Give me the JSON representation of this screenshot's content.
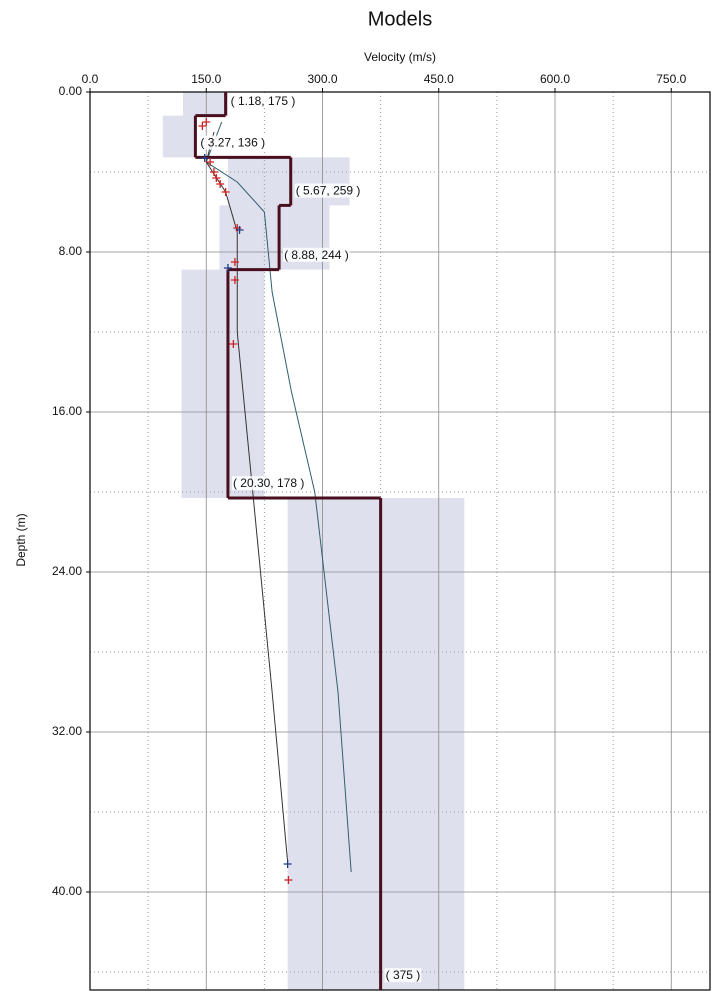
{
  "chart_data": {
    "type": "step-profile",
    "title": "Models",
    "x_label": "Velocity (m/s)",
    "y_label": "Depth (m)",
    "xlim": [
      0,
      800
    ],
    "ylim": [
      0,
      44.9
    ],
    "y_inverted": true,
    "xticks": [
      {
        "value": 0,
        "label": "0.0"
      },
      {
        "value": 150,
        "label": "150.0"
      },
      {
        "value": 300,
        "label": "300.0"
      },
      {
        "value": 450,
        "label": "450.0"
      },
      {
        "value": 600,
        "label": "600.0"
      },
      {
        "value": 750,
        "label": "750.0"
      }
    ],
    "yticks": [
      {
        "value": 0,
        "label": "0.00"
      },
      {
        "value": 8,
        "label": "8.00"
      },
      {
        "value": 16,
        "label": "16.00"
      },
      {
        "value": 24,
        "label": "24.00"
      },
      {
        "value": 32,
        "label": "32.00"
      },
      {
        "value": 40,
        "label": "40.00"
      }
    ],
    "xminorticks": [
      75,
      225,
      375,
      525,
      675
    ],
    "yminorticks": [
      4,
      12,
      20,
      28,
      36,
      44
    ],
    "grid": true,
    "layers": {
      "color": "#4a0f1e",
      "label_color": "#a01818",
      "range_color": "#d4d6e8",
      "depths": [
        1.18,
        3.27,
        5.67,
        8.88,
        20.3,
        null
      ],
      "velocities": [
        175,
        136,
        259,
        244,
        178,
        375
      ],
      "labels": [
        "( 1.18, 175 )",
        "( 3.27, 136 )",
        "( 5.67, 259 )",
        "( 8.88, 244 )",
        "( 20.30, 178 )",
        "( 375 )"
      ],
      "range_low": [
        120,
        94,
        178,
        167,
        118,
        255
      ],
      "range_high": [
        178,
        137,
        335,
        309,
        225,
        483
      ]
    },
    "curves": [
      {
        "color": "#2f5f6f",
        "depths": [
          1.5,
          3.5,
          4.5,
          6,
          8,
          10,
          15,
          20,
          30,
          39
        ],
        "velocities": [
          170,
          150,
          190,
          225,
          230,
          235,
          260,
          290,
          320,
          337
        ]
      },
      {
        "color": "#333333",
        "depths": [
          2,
          3.5,
          5,
          7,
          9,
          12,
          20,
          30,
          38.5
        ],
        "velocities": [
          160,
          150,
          175,
          190,
          190,
          190,
          210,
          235,
          255
        ]
      }
    ],
    "points": [
      {
        "color": "#d02020",
        "depths": [
          1.5,
          1.7,
          3.5,
          4,
          4.3,
          4.6,
          5,
          6.8,
          8.5,
          9.4,
          12.6,
          39.4
        ],
        "velocities": [
          150,
          145,
          155,
          160,
          163,
          168,
          175,
          190,
          187,
          187,
          185,
          256
        ]
      },
      {
        "color": "#203a80",
        "depths": [
          3.3,
          6.9,
          8.8,
          38.6
        ],
        "velocities": [
          148,
          193,
          178,
          255
        ]
      }
    ]
  }
}
